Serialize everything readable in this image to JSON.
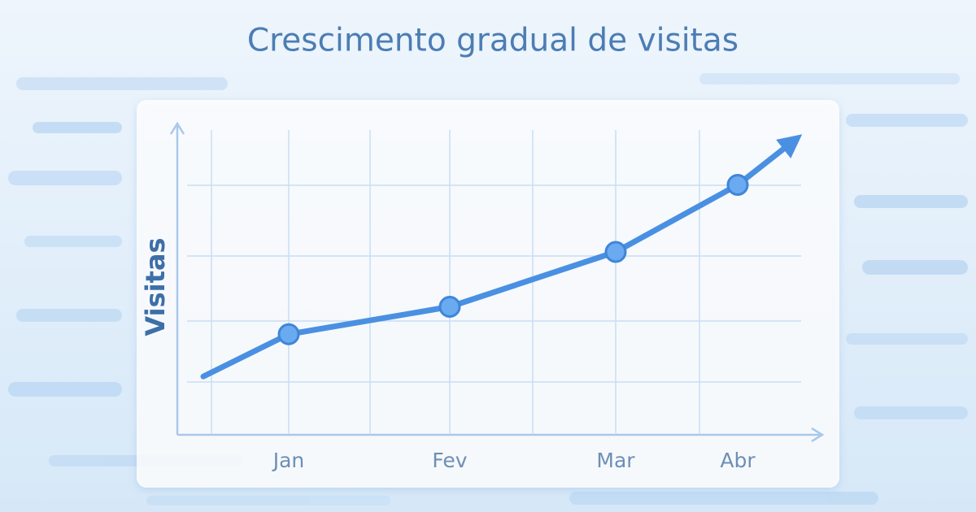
{
  "chart_data": {
    "type": "line",
    "title": "Crescimento gradual de visitas",
    "y_label": "Visitas",
    "categories": [
      "Jan",
      "Fev",
      "Mar",
      "Abr"
    ],
    "values": [
      33,
      42,
      60,
      82
    ],
    "color": "#4a90e2",
    "ylim": [
      0,
      100
    ],
    "grid": true
  }
}
